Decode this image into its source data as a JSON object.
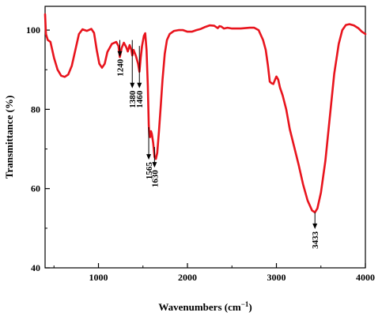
{
  "chart_data": {
    "type": "line",
    "xlabel": "Wavenumbers (cm",
    "xlabel_sup": "−1",
    "xlabel_close": ")",
    "ylabel": "Transmittance (%)",
    "xlim": [
      400,
      4000
    ],
    "ylim": [
      40,
      106
    ],
    "x_ticks": [
      {
        "value": 1000,
        "label": "1000"
      },
      {
        "value": 2000,
        "label": "2000"
      },
      {
        "value": 3000,
        "label": "3000"
      },
      {
        "value": 4000,
        "label": "4000"
      }
    ],
    "y_ticks": [
      {
        "value": 40,
        "label": "40"
      },
      {
        "value": 60,
        "label": "60"
      },
      {
        "value": 80,
        "label": "80"
      },
      {
        "value": 100,
        "label": "100"
      }
    ],
    "line_color": "#e8141d",
    "series": [
      {
        "points": [
          [
            400,
            104
          ],
          [
            410,
            99
          ],
          [
            430,
            97.5
          ],
          [
            460,
            97
          ],
          [
            500,
            93
          ],
          [
            540,
            90
          ],
          [
            580,
            88.5
          ],
          [
            620,
            88.2
          ],
          [
            660,
            88.8
          ],
          [
            700,
            91
          ],
          [
            740,
            95
          ],
          [
            780,
            99
          ],
          [
            820,
            100.2
          ],
          [
            870,
            99.8
          ],
          [
            920,
            100.3
          ],
          [
            950,
            99.3
          ],
          [
            980,
            95
          ],
          [
            1010,
            91.5
          ],
          [
            1040,
            90.5
          ],
          [
            1070,
            91.5
          ],
          [
            1100,
            94.5
          ],
          [
            1150,
            96.5
          ],
          [
            1200,
            97
          ],
          [
            1225,
            96
          ],
          [
            1240,
            93.2
          ],
          [
            1260,
            95.5
          ],
          [
            1285,
            96.8
          ],
          [
            1310,
            95.8
          ],
          [
            1330,
            94.6
          ],
          [
            1350,
            96.2
          ],
          [
            1370,
            95
          ],
          [
            1380,
            93.6
          ],
          [
            1395,
            95
          ],
          [
            1420,
            93.5
          ],
          [
            1445,
            91.5
          ],
          [
            1460,
            89.5
          ],
          [
            1475,
            93
          ],
          [
            1490,
            96
          ],
          [
            1510,
            98.5
          ],
          [
            1525,
            99.2
          ],
          [
            1540,
            95
          ],
          [
            1555,
            86
          ],
          [
            1565,
            76
          ],
          [
            1572,
            73.5
          ],
          [
            1580,
            73
          ],
          [
            1590,
            74.5
          ],
          [
            1600,
            73.8
          ],
          [
            1615,
            71.5
          ],
          [
            1630,
            68
          ],
          [
            1645,
            67.5
          ],
          [
            1660,
            69
          ],
          [
            1680,
            74.5
          ],
          [
            1700,
            81
          ],
          [
            1720,
            87.5
          ],
          [
            1745,
            94
          ],
          [
            1770,
            97.5
          ],
          [
            1800,
            99
          ],
          [
            1850,
            99.8
          ],
          [
            1900,
            100
          ],
          [
            1950,
            100
          ],
          [
            2000,
            99.6
          ],
          [
            2050,
            99.6
          ],
          [
            2100,
            100
          ],
          [
            2150,
            100.3
          ],
          [
            2200,
            100.8
          ],
          [
            2250,
            101.2
          ],
          [
            2300,
            101.1
          ],
          [
            2340,
            100.5
          ],
          [
            2360,
            101
          ],
          [
            2380,
            100.9
          ],
          [
            2410,
            100.4
          ],
          [
            2450,
            100.6
          ],
          [
            2500,
            100.4
          ],
          [
            2600,
            100.4
          ],
          [
            2700,
            100.6
          ],
          [
            2750,
            100.6
          ],
          [
            2800,
            100
          ],
          [
            2850,
            97.5
          ],
          [
            2880,
            95
          ],
          [
            2905,
            91
          ],
          [
            2925,
            87
          ],
          [
            2945,
            86.6
          ],
          [
            2965,
            86.4
          ],
          [
            2985,
            87.5
          ],
          [
            3000,
            88.3
          ],
          [
            3020,
            87.5
          ],
          [
            3040,
            85.5
          ],
          [
            3070,
            83.5
          ],
          [
            3110,
            80
          ],
          [
            3150,
            75
          ],
          [
            3200,
            70.5
          ],
          [
            3250,
            66
          ],
          [
            3300,
            61
          ],
          [
            3350,
            57
          ],
          [
            3400,
            54.5
          ],
          [
            3433,
            54
          ],
          [
            3460,
            55
          ],
          [
            3500,
            59
          ],
          [
            3550,
            67
          ],
          [
            3600,
            78
          ],
          [
            3650,
            89
          ],
          [
            3700,
            96.5
          ],
          [
            3740,
            100
          ],
          [
            3780,
            101.3
          ],
          [
            3820,
            101.5
          ],
          [
            3870,
            101.2
          ],
          [
            3920,
            100.5
          ],
          [
            3960,
            99.6
          ],
          [
            4000,
            99
          ]
        ]
      }
    ],
    "annotations": [
      {
        "label": "1240",
        "x": 1240,
        "y_start": 97.5,
        "y_end": 93.5
      },
      {
        "label": "1380",
        "x": 1380,
        "y_start": 97.5,
        "y_end": 85.5
      },
      {
        "label": "1460",
        "x": 1460,
        "y_start": 96.0,
        "y_end": 85.5
      },
      {
        "label": "1565",
        "x": 1565,
        "y_start": 75.5,
        "y_end": 67.5
      },
      {
        "label": "1630",
        "x": 1630,
        "y_start": 70.5,
        "y_end": 65.5
      },
      {
        "label": "3433",
        "x": 3433,
        "y_start": 54.0,
        "y_end": 50.0
      }
    ]
  }
}
